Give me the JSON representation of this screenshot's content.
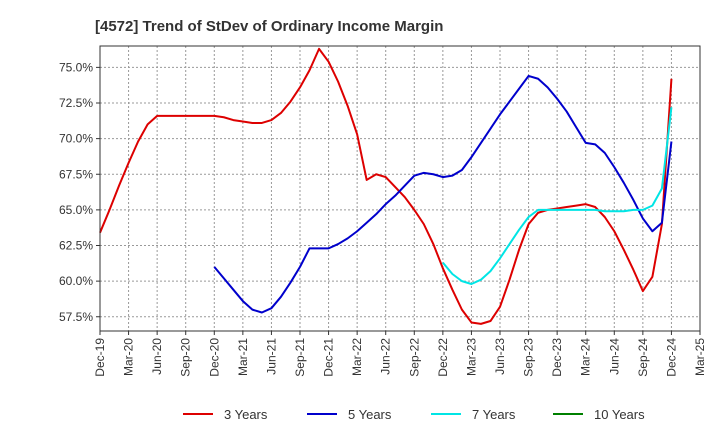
{
  "chart_data": {
    "type": "line",
    "title": "[4572]  Trend of StDev of Ordinary Income Margin",
    "xlabel": "",
    "ylabel": "",
    "x_ticks": [
      "Dec-19",
      "Mar-20",
      "Jun-20",
      "Sep-20",
      "Dec-20",
      "Mar-21",
      "Jun-21",
      "Sep-21",
      "Dec-21",
      "Mar-22",
      "Jun-22",
      "Sep-22",
      "Dec-22",
      "Mar-23",
      "Jun-23",
      "Sep-23",
      "Dec-23",
      "Mar-24",
      "Jun-24",
      "Sep-24",
      "Dec-24",
      "Mar-25"
    ],
    "y_ticks": [
      "57.5%",
      "60.0%",
      "62.5%",
      "65.0%",
      "67.5%",
      "70.0%",
      "72.5%",
      "75.0%"
    ],
    "ylim": [
      56.5,
      76.5
    ],
    "grid": true,
    "legend_position": "bottom",
    "series": [
      {
        "name": "3 Years",
        "color": "#dd0000",
        "x": [
          "Dec-19",
          "Jan-20",
          "Feb-20",
          "Mar-20",
          "Apr-20",
          "May-20",
          "Jun-20",
          "Jul-20",
          "Aug-20",
          "Sep-20",
          "Oct-20",
          "Nov-20",
          "Dec-20",
          "Jan-21",
          "Feb-21",
          "Mar-21",
          "Apr-21",
          "May-21",
          "Jun-21",
          "Jul-21",
          "Aug-21",
          "Sep-21",
          "Oct-21",
          "Nov-21",
          "Dec-21",
          "Jan-22",
          "Feb-22",
          "Mar-22",
          "Apr-22",
          "May-22",
          "Jun-22",
          "Jul-22",
          "Aug-22",
          "Sep-22",
          "Oct-22",
          "Nov-22",
          "Dec-22",
          "Jan-23",
          "Feb-23",
          "Mar-23",
          "Apr-23",
          "May-23",
          "Jun-23",
          "Jul-23",
          "Aug-23",
          "Sep-23",
          "Oct-23",
          "Nov-23",
          "Dec-23",
          "Jan-24",
          "Feb-24",
          "Mar-24",
          "Apr-24",
          "May-24",
          "Jun-24",
          "Jul-24",
          "Aug-24",
          "Sep-24",
          "Oct-24",
          "Nov-24",
          "Dec-24"
        ],
        "values": [
          63.4,
          65.0,
          66.7,
          68.3,
          69.8,
          71.0,
          71.6,
          71.6,
          71.6,
          71.6,
          71.6,
          71.6,
          71.6,
          71.5,
          71.3,
          71.2,
          71.1,
          71.1,
          71.3,
          71.8,
          72.6,
          73.6,
          74.8,
          76.3,
          75.4,
          74.0,
          72.3,
          70.3,
          67.1,
          67.5,
          67.3,
          66.6,
          65.9,
          65.0,
          64.0,
          62.6,
          60.9,
          59.4,
          58.0,
          57.1,
          57.0,
          57.2,
          58.2,
          60.1,
          62.2,
          64.0,
          64.8,
          65.0,
          65.1,
          65.2,
          65.3,
          65.4,
          65.2,
          64.5,
          63.5,
          62.2,
          60.8,
          59.3,
          60.3,
          64.0,
          74.2
        ]
      },
      {
        "name": "5 Years",
        "color": "#0000cc",
        "x": [
          "Dec-20",
          "Jan-21",
          "Feb-21",
          "Mar-21",
          "Apr-21",
          "May-21",
          "Jun-21",
          "Jul-21",
          "Aug-21",
          "Sep-21",
          "Oct-21",
          "Nov-21",
          "Dec-21",
          "Jan-22",
          "Feb-22",
          "Mar-22",
          "Apr-22",
          "May-22",
          "Jun-22",
          "Jul-22",
          "Aug-22",
          "Sep-22",
          "Oct-22",
          "Nov-22",
          "Dec-22",
          "Jan-23",
          "Feb-23",
          "Mar-23",
          "Apr-23",
          "May-23",
          "Jun-23",
          "Jul-23",
          "Aug-23",
          "Sep-23",
          "Oct-23",
          "Nov-23",
          "Dec-23",
          "Jan-24",
          "Feb-24",
          "Mar-24",
          "Apr-24",
          "May-24",
          "Jun-24",
          "Jul-24",
          "Aug-24",
          "Sep-24",
          "Oct-24",
          "Nov-24",
          "Dec-24"
        ],
        "values": [
          61.0,
          60.2,
          59.4,
          58.6,
          58.0,
          57.8,
          58.1,
          58.9,
          59.9,
          61.0,
          62.3,
          62.3,
          62.3,
          62.6,
          63.0,
          63.5,
          64.1,
          64.7,
          65.4,
          66.0,
          66.7,
          67.4,
          67.6,
          67.5,
          67.3,
          67.4,
          67.8,
          68.7,
          69.7,
          70.7,
          71.7,
          72.6,
          73.5,
          74.4,
          74.2,
          73.6,
          72.8,
          71.9,
          70.8,
          69.7,
          69.6,
          69.0,
          68.0,
          66.9,
          65.7,
          64.4,
          63.5,
          64.1,
          69.8
        ]
      },
      {
        "name": "7 Years",
        "color": "#00e5e5",
        "x": [
          "Dec-22",
          "Jan-23",
          "Feb-23",
          "Mar-23",
          "Apr-23",
          "May-23",
          "Jun-23",
          "Jul-23",
          "Aug-23",
          "Sep-23",
          "Oct-23",
          "Nov-23",
          "Dec-23",
          "Jan-24",
          "Feb-24",
          "Mar-24",
          "Apr-24",
          "May-24",
          "Jun-24",
          "Jul-24",
          "Aug-24",
          "Sep-24",
          "Oct-24",
          "Nov-24",
          "Dec-24"
        ],
        "values": [
          61.3,
          60.5,
          60.0,
          59.8,
          60.1,
          60.7,
          61.6,
          62.6,
          63.6,
          64.5,
          65.0,
          65.0,
          65.0,
          65.0,
          65.0,
          65.0,
          65.0,
          64.9,
          64.9,
          64.9,
          65.0,
          65.0,
          65.3,
          66.5,
          72.2
        ]
      },
      {
        "name": "10 Years",
        "color": "#008000",
        "x": [],
        "values": []
      }
    ]
  }
}
